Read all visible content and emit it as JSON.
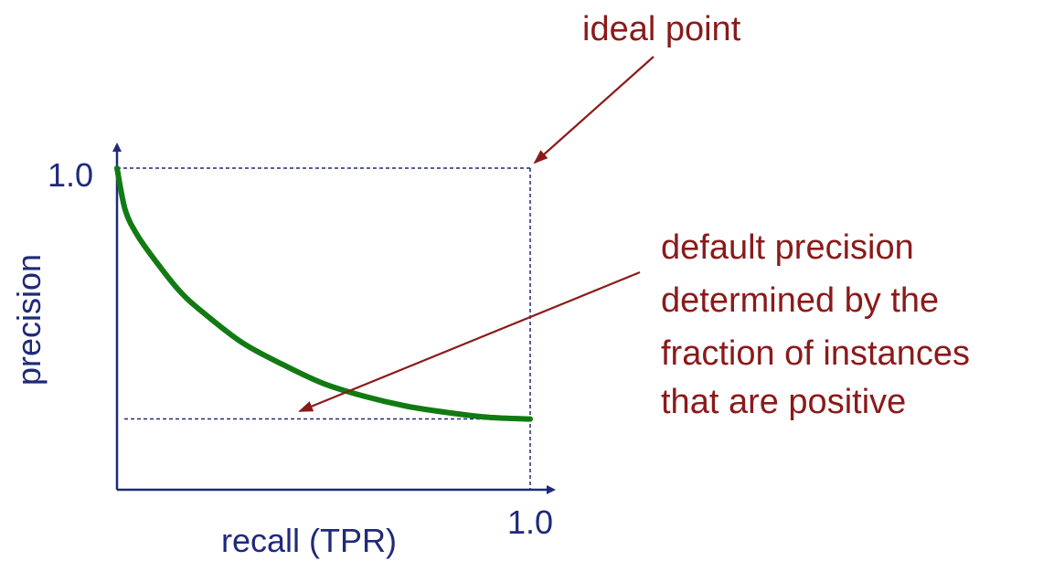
{
  "chart_data": {
    "type": "line",
    "xlabel": "recall (TPR)",
    "ylabel": "precision",
    "x_tick_labels": [
      "1.0"
    ],
    "y_tick_labels": [
      "1.0"
    ],
    "xlim": [
      0,
      1.0
    ],
    "ylim": [
      0,
      1.0
    ],
    "grid": false,
    "series": [
      {
        "x": [
          0,
          0.02,
          0.05,
          0.1,
          0.15,
          0.2,
          0.3,
          0.4,
          0.5,
          0.6,
          0.7,
          0.8,
          0.9,
          1.0
        ],
        "y": [
          1.0,
          0.87,
          0.79,
          0.7,
          0.62,
          0.56,
          0.46,
          0.39,
          0.33,
          0.29,
          0.26,
          0.24,
          0.225,
          0.22
        ]
      }
    ],
    "default_precision": 0.22,
    "annotations": [
      {
        "text": "ideal point"
      },
      {
        "lines": [
          "default precision",
          "determined by the",
          "fraction of instances",
          "that are positive"
        ]
      }
    ],
    "colors": {
      "axis": "#1f2a7a",
      "curve": "#127a12",
      "annotation": "#8b1a1a"
    }
  }
}
